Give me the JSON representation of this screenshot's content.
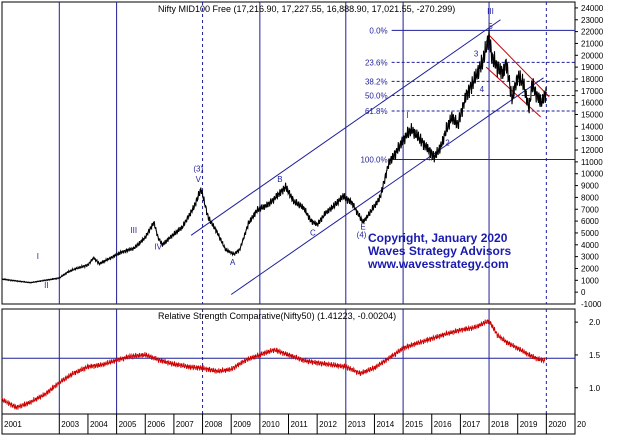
{
  "chart_data": [
    {
      "type": "line",
      "panel": "price",
      "title": "Nifty MID100 Free (17,216.90, 17,227.55, 16,888.90, 17,021.55, -270.299)",
      "ylim": [
        -1000,
        24500
      ],
      "yticks": [
        0,
        1000,
        2000,
        3000,
        4000,
        5000,
        6000,
        7000,
        8000,
        9000,
        10000,
        11000,
        12000,
        13000,
        14000,
        15000,
        16000,
        17000,
        18000,
        19000,
        20000,
        21000,
        22000,
        23000,
        24000
      ],
      "extra_ytick": "-1000",
      "grid": false,
      "series": [
        {
          "values_by_year": [
            [
              2001.0,
              1100
            ],
            [
              2002.0,
              800
            ],
            [
              2002.5,
              1000
            ],
            [
              2003.0,
              1200
            ],
            [
              2003.3,
              1700
            ],
            [
              2003.6,
              2000
            ],
            [
              2004.0,
              2300
            ],
            [
              2004.2,
              2900
            ],
            [
              2004.4,
              2400
            ],
            [
              2004.8,
              2900
            ],
            [
              2005.2,
              3400
            ],
            [
              2005.6,
              3700
            ],
            [
              2006.0,
              4600
            ],
            [
              2006.3,
              5900
            ],
            [
              2006.45,
              4600
            ],
            [
              2006.6,
              4000
            ],
            [
              2006.9,
              4700
            ],
            [
              2007.3,
              5500
            ],
            [
              2007.7,
              7200
            ],
            [
              2007.95,
              8700
            ],
            [
              2008.2,
              6300
            ],
            [
              2008.5,
              5100
            ],
            [
              2008.8,
              3600
            ],
            [
              2009.1,
              3200
            ],
            [
              2009.3,
              3600
            ],
            [
              2009.6,
              5800
            ],
            [
              2009.9,
              6900
            ],
            [
              2010.3,
              7400
            ],
            [
              2010.7,
              8400
            ],
            [
              2010.9,
              8900
            ],
            [
              2011.2,
              7600
            ],
            [
              2011.5,
              7200
            ],
            [
              2011.8,
              6000
            ],
            [
              2012.0,
              5700
            ],
            [
              2012.3,
              6700
            ],
            [
              2012.6,
              7300
            ],
            [
              2012.9,
              8100
            ],
            [
              2013.2,
              7600
            ],
            [
              2013.6,
              5900
            ],
            [
              2013.9,
              6900
            ],
            [
              2014.2,
              8000
            ],
            [
              2014.5,
              10900
            ],
            [
              2014.8,
              12000
            ],
            [
              2015.1,
              13200
            ],
            [
              2015.3,
              13700
            ],
            [
              2015.6,
              12900
            ],
            [
              2015.8,
              12300
            ],
            [
              2016.1,
              11400
            ],
            [
              2016.3,
              12200
            ],
            [
              2016.5,
              13600
            ],
            [
              2016.7,
              14800
            ],
            [
              2016.9,
              14100
            ],
            [
              2017.2,
              16600
            ],
            [
              2017.5,
              18000
            ],
            [
              2017.8,
              19600
            ],
            [
              2018.0,
              21600
            ],
            [
              2018.1,
              19800
            ],
            [
              2018.3,
              19000
            ],
            [
              2018.5,
              18500
            ],
            [
              2018.6,
              19500
            ],
            [
              2018.8,
              16300
            ],
            [
              2019.0,
              18200
            ],
            [
              2019.2,
              17600
            ],
            [
              2019.4,
              15500
            ],
            [
              2019.5,
              17600
            ],
            [
              2019.7,
              16500
            ],
            [
              2019.85,
              16000
            ],
            [
              2020.0,
              17000
            ]
          ]
        }
      ],
      "fibonacci": [
        {
          "label": "0.0%",
          "value": 22100
        },
        {
          "label": "23.6%",
          "value": 19400
        },
        {
          "label": "38.2%",
          "value": 17800
        },
        {
          "label": "50.0%",
          "value": 16600
        },
        {
          "label": "61.8%",
          "value": 15300
        },
        {
          "label": "100.0%",
          "value": 11200
        }
      ],
      "wave_labels": [
        {
          "text": "I",
          "x": 2002.25,
          "y": 2800
        },
        {
          "text": "II",
          "x": 2002.55,
          "y": 350
        },
        {
          "text": "III",
          "x": 2005.6,
          "y": 5000
        },
        {
          "text": "IV",
          "x": 2006.45,
          "y": 3600
        },
        {
          "text": "(3)",
          "x": 2007.85,
          "y": 10200
        },
        {
          "text": "V",
          "x": 2007.85,
          "y": 9300
        },
        {
          "text": "A",
          "x": 2009.05,
          "y": 2300
        },
        {
          "text": "B",
          "x": 2010.7,
          "y": 9300
        },
        {
          "text": "C",
          "x": 2011.85,
          "y": 4800
        },
        {
          "text": "(4)",
          "x": 2013.55,
          "y": 4600
        },
        {
          "text": "E",
          "x": 2013.6,
          "y": 5300
        },
        {
          "text": "I",
          "x": 2015.15,
          "y": 14700
        },
        {
          "text": "II",
          "x": 2015.95,
          "y": 11100
        },
        {
          "text": "2",
          "x": 2016.55,
          "y": 12400
        },
        {
          "text": "3",
          "x": 2017.55,
          "y": 19900
        },
        {
          "text": "4",
          "x": 2017.75,
          "y": 16900
        },
        {
          "text": "5",
          "x": 2018.05,
          "y": 22200
        },
        {
          "text": "III",
          "x": 2018.05,
          "y": 23500
        }
      ],
      "watermark": [
        "Copyright, January 2020",
        "Waves Strategy Advisors",
        "www.wavesstrategy.com"
      ]
    },
    {
      "type": "line",
      "panel": "relative-strength",
      "title": "Relative Strength Comparative(Nifty50) (1.41223, -0.00204)",
      "ylim": [
        0.6,
        2.2
      ],
      "yticks": [
        1.0,
        1.5,
        2.0
      ],
      "ytick_labels": [
        "1.0",
        "1.5",
        "2.0"
      ],
      "reference_line": 1.45,
      "series": [
        {
          "values_by_year": [
            [
              2001.0,
              0.82
            ],
            [
              2001.5,
              0.7
            ],
            [
              2002.0,
              0.78
            ],
            [
              2002.5,
              0.9
            ],
            [
              2003.0,
              1.08
            ],
            [
              2003.5,
              1.22
            ],
            [
              2004.0,
              1.32
            ],
            [
              2004.5,
              1.35
            ],
            [
              2005.0,
              1.42
            ],
            [
              2005.5,
              1.48
            ],
            [
              2006.0,
              1.5
            ],
            [
              2006.5,
              1.42
            ],
            [
              2007.0,
              1.36
            ],
            [
              2007.5,
              1.32
            ],
            [
              2008.0,
              1.3
            ],
            [
              2008.5,
              1.25
            ],
            [
              2009.0,
              1.28
            ],
            [
              2009.5,
              1.42
            ],
            [
              2010.0,
              1.5
            ],
            [
              2010.5,
              1.58
            ],
            [
              2011.0,
              1.5
            ],
            [
              2011.5,
              1.42
            ],
            [
              2012.0,
              1.38
            ],
            [
              2012.5,
              1.35
            ],
            [
              2013.0,
              1.32
            ],
            [
              2013.5,
              1.22
            ],
            [
              2014.0,
              1.3
            ],
            [
              2014.5,
              1.45
            ],
            [
              2015.0,
              1.6
            ],
            [
              2015.5,
              1.68
            ],
            [
              2016.0,
              1.75
            ],
            [
              2016.5,
              1.82
            ],
            [
              2017.0,
              1.88
            ],
            [
              2017.5,
              1.92
            ],
            [
              2018.0,
              2.02
            ],
            [
              2018.3,
              1.8
            ],
            [
              2018.6,
              1.7
            ],
            [
              2019.0,
              1.6
            ],
            [
              2019.4,
              1.5
            ],
            [
              2019.7,
              1.44
            ],
            [
              2019.95,
              1.41
            ]
          ]
        }
      ]
    }
  ],
  "x_axis": {
    "type": "date",
    "start_year": 2001,
    "end_year": 2021,
    "tick_labels": [
      "2001",
      "2003",
      "2004",
      "2005",
      "2006",
      "2007",
      "2008",
      "2009",
      "2010",
      "2011",
      "2012",
      "2013",
      "2014",
      "2015",
      "2016",
      "2017",
      "2018",
      "2019",
      "2020",
      "20"
    ],
    "tick_years": [
      2001,
      2003,
      2004,
      2005,
      2006,
      2007,
      2008,
      2009,
      2010,
      2011,
      2012,
      2013,
      2014,
      2015,
      2016,
      2017,
      2018,
      2019,
      2020,
      2021
    ]
  },
  "vertical_markers": [
    {
      "year": 2003.0,
      "style": "solid"
    },
    {
      "year": 2005.0,
      "style": "solid"
    },
    {
      "year": 2008.0,
      "style": "dashed"
    },
    {
      "year": 2010.0,
      "style": "solid"
    },
    {
      "year": 2013.0,
      "style": "solid"
    },
    {
      "year": 2015.0,
      "style": "solid"
    },
    {
      "year": 2018.0,
      "style": "solid"
    },
    {
      "year": 2020.0,
      "style": "dashed"
    }
  ],
  "colors": {
    "price_line": "#000000",
    "rs_line": "#cc0000",
    "channel": "#1f1f9a",
    "downtrend": "#cc0000",
    "markers": "#1f1f9a",
    "label": "#1f1f9a",
    "watermark": "#1a1ab0",
    "axis_text": "#000000"
  }
}
